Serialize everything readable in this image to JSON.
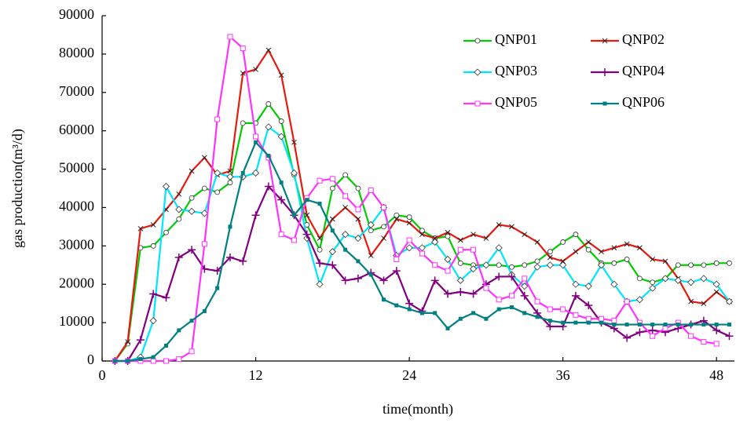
{
  "chart_data": {
    "type": "line",
    "x_label": "time(month)",
    "y_label": "gas production(m³/d)",
    "x": [
      1,
      2,
      3,
      4,
      5,
      6,
      7,
      8,
      9,
      10,
      11,
      12,
      13,
      14,
      15,
      16,
      17,
      18,
      19,
      20,
      21,
      22,
      23,
      24,
      25,
      26,
      27,
      28,
      29,
      30,
      31,
      32,
      33,
      34,
      35,
      36,
      37,
      38,
      39,
      40,
      41,
      42,
      43,
      44,
      45,
      46,
      47,
      48,
      49
    ],
    "xlim": [
      0,
      49.4
    ],
    "xticks": [
      0,
      12,
      24,
      36,
      48
    ],
    "ylim": [
      0,
      90000
    ],
    "yticks": [
      0,
      10000,
      20000,
      30000,
      40000,
      50000,
      60000,
      70000,
      80000,
      90000
    ],
    "grid": false,
    "legend": "top-right",
    "series": [
      {
        "name": "QNP01",
        "color": "#00cc00",
        "marker": "circle",
        "values": [
          0,
          4500,
          29500,
          30000,
          33500,
          37000,
          42500,
          45000,
          44000,
          46500,
          62000,
          62000,
          67000,
          62500,
          48500,
          35500,
          29000,
          45000,
          48500,
          45000,
          34000,
          35000,
          38000,
          37500,
          34000,
          32000,
          32500,
          25500,
          25000,
          25000,
          25000,
          24500,
          25000,
          26000,
          28500,
          31000,
          33000,
          29000,
          25500,
          25500,
          26500,
          21500,
          20500,
          21500,
          25000,
          25000,
          25000,
          25500,
          25500
        ]
      },
      {
        "name": "QNP02",
        "color": "#e8190f",
        "marker": "x",
        "values": [
          0,
          5000,
          34500,
          35500,
          39500,
          43500,
          49500,
          53000,
          48500,
          49500,
          75000,
          76000,
          81000,
          74500,
          57000,
          38000,
          32000,
          37000,
          40000,
          37000,
          27500,
          32000,
          37000,
          36000,
          33000,
          32000,
          33500,
          31500,
          33000,
          32000,
          35500,
          35000,
          33000,
          31000,
          27000,
          26000,
          28500,
          31000,
          28500,
          29500,
          30500,
          29500,
          26500,
          26000,
          21500,
          15500,
          15000,
          18000,
          15500
        ]
      },
      {
        "name": "QNP03",
        "color": "#00e5ff",
        "marker": "diamond",
        "values": [
          0,
          0,
          1000,
          10500,
          45500,
          39500,
          39000,
          38500,
          49000,
          48000,
          48000,
          49000,
          61000,
          58500,
          49000,
          32000,
          20000,
          28500,
          33000,
          32000,
          35500,
          40000,
          27500,
          29500,
          29500,
          31000,
          26500,
          21000,
          24000,
          25000,
          29500,
          22500,
          19500,
          24500,
          25000,
          25000,
          20000,
          19500,
          25000,
          20000,
          15500,
          16000,
          19000,
          21500,
          21000,
          20500,
          21500,
          20000,
          15500
        ]
      },
      {
        "name": "QNP04",
        "color": "#800080",
        "marker": "plus",
        "values": [
          0,
          0,
          5500,
          17500,
          16500,
          27000,
          29000,
          24000,
          23500,
          27000,
          26000,
          38000,
          45500,
          42000,
          38000,
          33000,
          25500,
          25000,
          21000,
          21500,
          23000,
          21000,
          23500,
          15000,
          13000,
          21000,
          17500,
          18000,
          17500,
          20000,
          22000,
          22000,
          17000,
          12500,
          9000,
          9000,
          17000,
          14500,
          10000,
          8500,
          6000,
          7500,
          8000,
          7500,
          8500,
          9500,
          10500,
          8000,
          6500
        ]
      },
      {
        "name": "QNP05",
        "color": "#ff33ff",
        "marker": "square",
        "values": [
          0,
          0,
          0,
          0,
          0,
          500,
          2500,
          30500,
          63000,
          84500,
          81500,
          58500,
          53000,
          33000,
          31500,
          42500,
          47000,
          47500,
          43000,
          39500,
          44500,
          40000,
          26500,
          31500,
          28000,
          25000,
          23500,
          29000,
          29000,
          19000,
          16000,
          17000,
          21500,
          15500,
          13500,
          13500,
          12000,
          11000,
          11000,
          10500,
          15500,
          10000,
          6500,
          8500,
          10000,
          6500,
          5000,
          4500,
          null
        ]
      },
      {
        "name": "QNP06",
        "color": "#008080",
        "marker": "filled-square",
        "values": [
          0,
          0,
          500,
          1000,
          4000,
          8000,
          10500,
          13000,
          19000,
          35000,
          49000,
          57000,
          53500,
          46500,
          38000,
          42000,
          41000,
          34000,
          29000,
          26000,
          22500,
          16000,
          14500,
          13500,
          12500,
          12500,
          8500,
          11000,
          12500,
          11000,
          13500,
          14000,
          12500,
          11500,
          10500,
          10000,
          10000,
          10000,
          10000,
          9500,
          9500,
          9500,
          9500,
          9500,
          9500,
          9500,
          9500,
          9500,
          9500
        ]
      }
    ]
  }
}
